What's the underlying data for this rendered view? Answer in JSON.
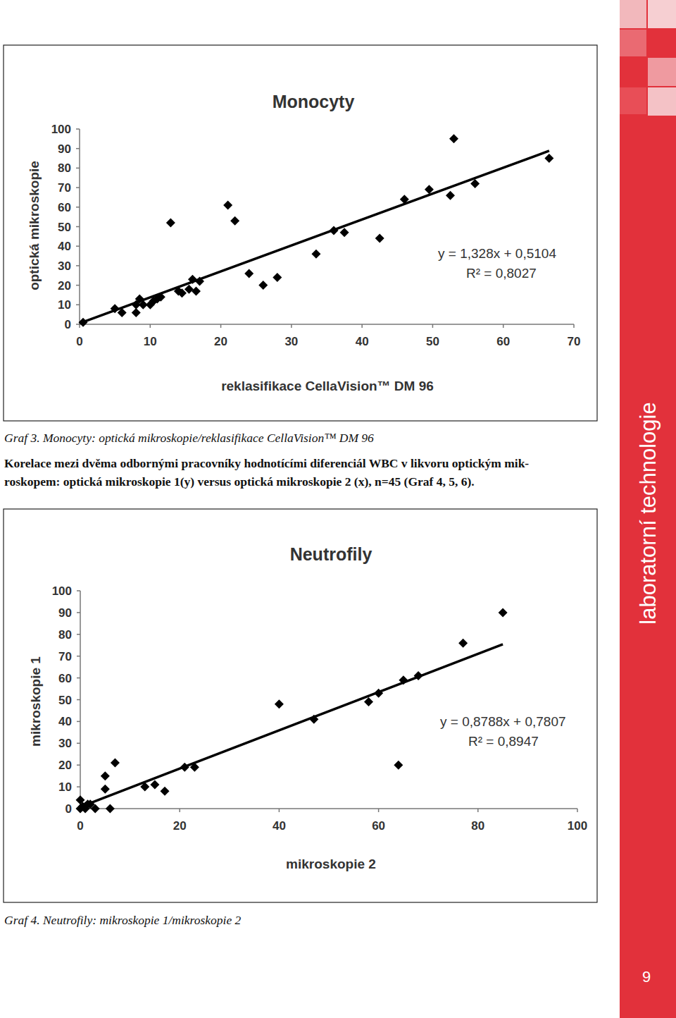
{
  "chart_data": [
    {
      "type": "scatter",
      "title": "Monocyty",
      "x_label": "reklasifikace CellaVision™ DM 96",
      "y_label": "optická mikroskopie",
      "x": [
        0.5,
        5,
        6,
        8,
        8,
        8.5,
        9,
        10,
        10.5,
        11,
        11.5,
        12.9,
        14,
        14.5,
        15.5,
        16,
        16.5,
        17,
        21,
        22,
        24,
        26,
        28,
        33.5,
        36,
        37.5,
        42.5,
        46,
        49.5,
        52.5,
        53,
        56,
        66.5
      ],
      "values": [
        1,
        8,
        6,
        6,
        10,
        13,
        10,
        10,
        12,
        13,
        14,
        52,
        17,
        16,
        18,
        23,
        17,
        22,
        61,
        53,
        26,
        20,
        24,
        36,
        48,
        47,
        44,
        64,
        69,
        66,
        95,
        72,
        85
      ],
      "color": "#000000",
      "marker": "diamond",
      "xlim": [
        0,
        70
      ],
      "xticks": [
        0,
        10,
        20,
        30,
        40,
        50,
        60,
        70
      ],
      "ylim": [
        0,
        100
      ],
      "yticks": [
        0,
        10,
        20,
        30,
        40,
        50,
        60,
        70,
        80,
        90,
        100
      ],
      "grid": false,
      "trendline": {
        "slope": 1.328,
        "intercept": 0.5104,
        "x": [
          0,
          66.5
        ]
      },
      "annotations": [
        "y = 1,328x + 0,5104",
        "R² = 0,8027"
      ]
    },
    {
      "type": "scatter",
      "title": "Neutrofily",
      "x_label": "mikroskopie 2",
      "y_label": "mikroskopie 1",
      "x": [
        0,
        0,
        0.5,
        1,
        1,
        1.5,
        2,
        3,
        5,
        5,
        6,
        7,
        13,
        15,
        17,
        21,
        23,
        40,
        47,
        58,
        60,
        64,
        65,
        68,
        77,
        85
      ],
      "values": [
        4,
        0,
        1,
        0,
        1,
        2,
        2,
        0,
        15,
        9,
        0,
        21,
        10,
        11,
        8,
        19,
        19,
        48,
        41,
        49,
        53,
        20,
        59,
        61,
        76,
        90
      ],
      "color": "#000000",
      "marker": "diamond",
      "xlim": [
        0,
        100
      ],
      "xticks": [
        0,
        20,
        40,
        60,
        80,
        100
      ],
      "ylim": [
        0,
        100
      ],
      "yticks": [
        0,
        10,
        20,
        30,
        40,
        50,
        60,
        70,
        80,
        90,
        100
      ],
      "grid": false,
      "trendline": {
        "slope": 0.8788,
        "intercept": 0.7807,
        "x": [
          0,
          85
        ]
      },
      "annotations": [
        "y = 0,8788x + 0,7807",
        "R² = 0,8947"
      ]
    }
  ],
  "page": {
    "caption_3": "Graf 3.  Monocyty: optická mikroskopie/reklasifikace CellaVision™ DM 96",
    "paragraph": [
      "Korelace mezi dvěma odbornými pracovníky hodnotícími diferenciál WBC v likvoru optickým mik-",
      "roskopem: optická mikroskopie 1(y) versus optická mikroskopie 2 (x), n=45 (Graf 4, 5, 6)."
    ],
    "caption_4": "Graf 4. Neutrofily: mikroskopie 1/mikroskopie 2",
    "sidebar_label": "laboratorní technologie",
    "page_number": 9
  }
}
